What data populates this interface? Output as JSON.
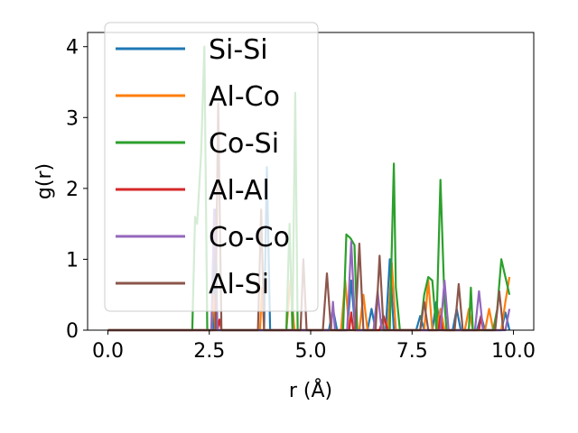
{
  "chart_data": {
    "type": "line",
    "xlabel": "r (Å)",
    "ylabel": "g(r)",
    "xlim": [
      -0.5,
      10.5
    ],
    "ylim": [
      0,
      4.2
    ],
    "xticks": [
      0.0,
      2.5,
      5.0,
      7.5,
      10.0
    ],
    "xtick_labels": [
      "0.0",
      "2.5",
      "5.0",
      "7.5",
      "10.0"
    ],
    "yticks": [
      0,
      1,
      2,
      3,
      4
    ],
    "ytick_labels": [
      "0",
      "1",
      "2",
      "3",
      "4"
    ],
    "grid": false,
    "legend_position": "top-left",
    "series": [
      {
        "name": "Si-Si",
        "color": "#1f77b4",
        "x": [
          0.0,
          2.6,
          2.65,
          2.7,
          3.85,
          3.92,
          4.0,
          5.45,
          5.55,
          5.65,
          5.9,
          6.0,
          6.1,
          6.4,
          6.5,
          6.6,
          6.85,
          6.95,
          7.05,
          7.6,
          7.7,
          7.8,
          8.0,
          8.1,
          8.2,
          8.5,
          8.6,
          8.7,
          9.1,
          9.2,
          9.3,
          9.7,
          9.8,
          9.9
        ],
        "y": [
          0,
          0,
          1.7,
          0,
          0,
          2.3,
          0,
          0,
          0.3,
          0,
          0,
          0.7,
          0,
          0,
          0.3,
          0,
          0,
          1.0,
          0,
          0,
          0.2,
          0,
          0,
          0.4,
          0,
          0,
          0.3,
          0,
          0,
          0.2,
          0,
          0,
          0.25,
          0
        ]
      },
      {
        "name": "Al-Co",
        "color": "#ff7f0e",
        "x": [
          0.0,
          2.55,
          2.6,
          2.65,
          3.75,
          3.8,
          3.85,
          4.4,
          4.5,
          4.6,
          5.75,
          5.85,
          5.95,
          6.2,
          6.3,
          6.4,
          6.9,
          7.0,
          7.1,
          7.8,
          7.9,
          8.0,
          8.1,
          8.2,
          8.3,
          8.8,
          8.9,
          9.0,
          9.3,
          9.4,
          9.5,
          9.7,
          9.8,
          9.9
        ],
        "y": [
          0,
          0,
          0.5,
          0,
          0,
          0.6,
          0,
          0,
          0.7,
          0,
          0,
          0.7,
          0,
          0,
          0.5,
          0,
          0,
          0.95,
          0,
          0,
          0.7,
          0,
          0,
          0.3,
          0,
          0,
          0.3,
          0,
          0,
          0.3,
          0,
          0,
          0.4,
          0.75
        ]
      },
      {
        "name": "Co-Si",
        "color": "#2ca02c",
        "x": [
          0.0,
          2.08,
          2.15,
          2.2,
          2.3,
          2.38,
          2.45,
          4.4,
          4.48,
          4.55,
          4.62,
          4.68,
          5.8,
          5.88,
          5.98,
          6.08,
          6.15,
          6.95,
          7.05,
          7.1,
          7.2,
          7.7,
          7.8,
          7.9,
          8.0,
          8.1,
          8.2,
          8.3,
          8.35,
          8.9,
          8.95,
          9.0,
          9.5,
          9.6,
          9.7,
          9.9
        ],
        "y": [
          0,
          0,
          1.6,
          1.5,
          2.5,
          4.0,
          0,
          0,
          1.5,
          0,
          3.35,
          0,
          0,
          1.35,
          1.3,
          1.2,
          0,
          0,
          2.35,
          0.6,
          0,
          0,
          0.5,
          0.75,
          0.7,
          0,
          2.12,
          0.4,
          0,
          0,
          0.6,
          0,
          0,
          0.3,
          1.0,
          0.5
        ]
      },
      {
        "name": "Al-Al",
        "color": "#d62728",
        "x": [
          0.0,
          2.7,
          2.75,
          2.8,
          5.95,
          6.0,
          6.05,
          6.7,
          6.8,
          6.9,
          8.15,
          8.2,
          8.25,
          9.15,
          9.2,
          9.25
        ],
        "y": [
          0,
          0,
          0.15,
          0,
          0,
          0.25,
          0,
          0,
          0.2,
          0,
          0,
          0.2,
          0,
          0,
          0.2,
          0
        ]
      },
      {
        "name": "Co-Co",
        "color": "#9467bd",
        "x": [
          0.0,
          2.55,
          2.62,
          2.7,
          5.5,
          5.55,
          5.6,
          5.9,
          6.0,
          6.1,
          6.55,
          6.65,
          6.75,
          8.2,
          8.3,
          8.4,
          9.05,
          9.15,
          9.25,
          9.8,
          9.9
        ],
        "y": [
          0,
          0,
          1.7,
          0,
          0,
          0.4,
          0,
          0,
          1.25,
          0,
          0,
          0.55,
          0,
          0,
          0.7,
          0,
          0,
          0.55,
          0,
          0,
          0.3
        ]
      },
      {
        "name": "Al-Si",
        "color": "#8c564b",
        "x": [
          0.0,
          2.65,
          2.72,
          2.8,
          3.7,
          3.78,
          3.85,
          4.75,
          4.82,
          4.9,
          5.3,
          5.4,
          5.5,
          6.1,
          6.2,
          6.3,
          6.6,
          6.7,
          6.8,
          7.7,
          7.8,
          7.9,
          8.55,
          8.65,
          8.75,
          9.55,
          9.65,
          9.75
        ],
        "y": [
          0,
          0,
          3.2,
          0,
          0,
          1.7,
          0,
          0,
          1.0,
          0,
          0,
          0.8,
          0,
          0,
          1.22,
          0,
          0,
          1.05,
          0,
          0,
          0.4,
          0,
          0,
          0.65,
          0,
          0,
          0.55,
          0
        ]
      }
    ]
  }
}
